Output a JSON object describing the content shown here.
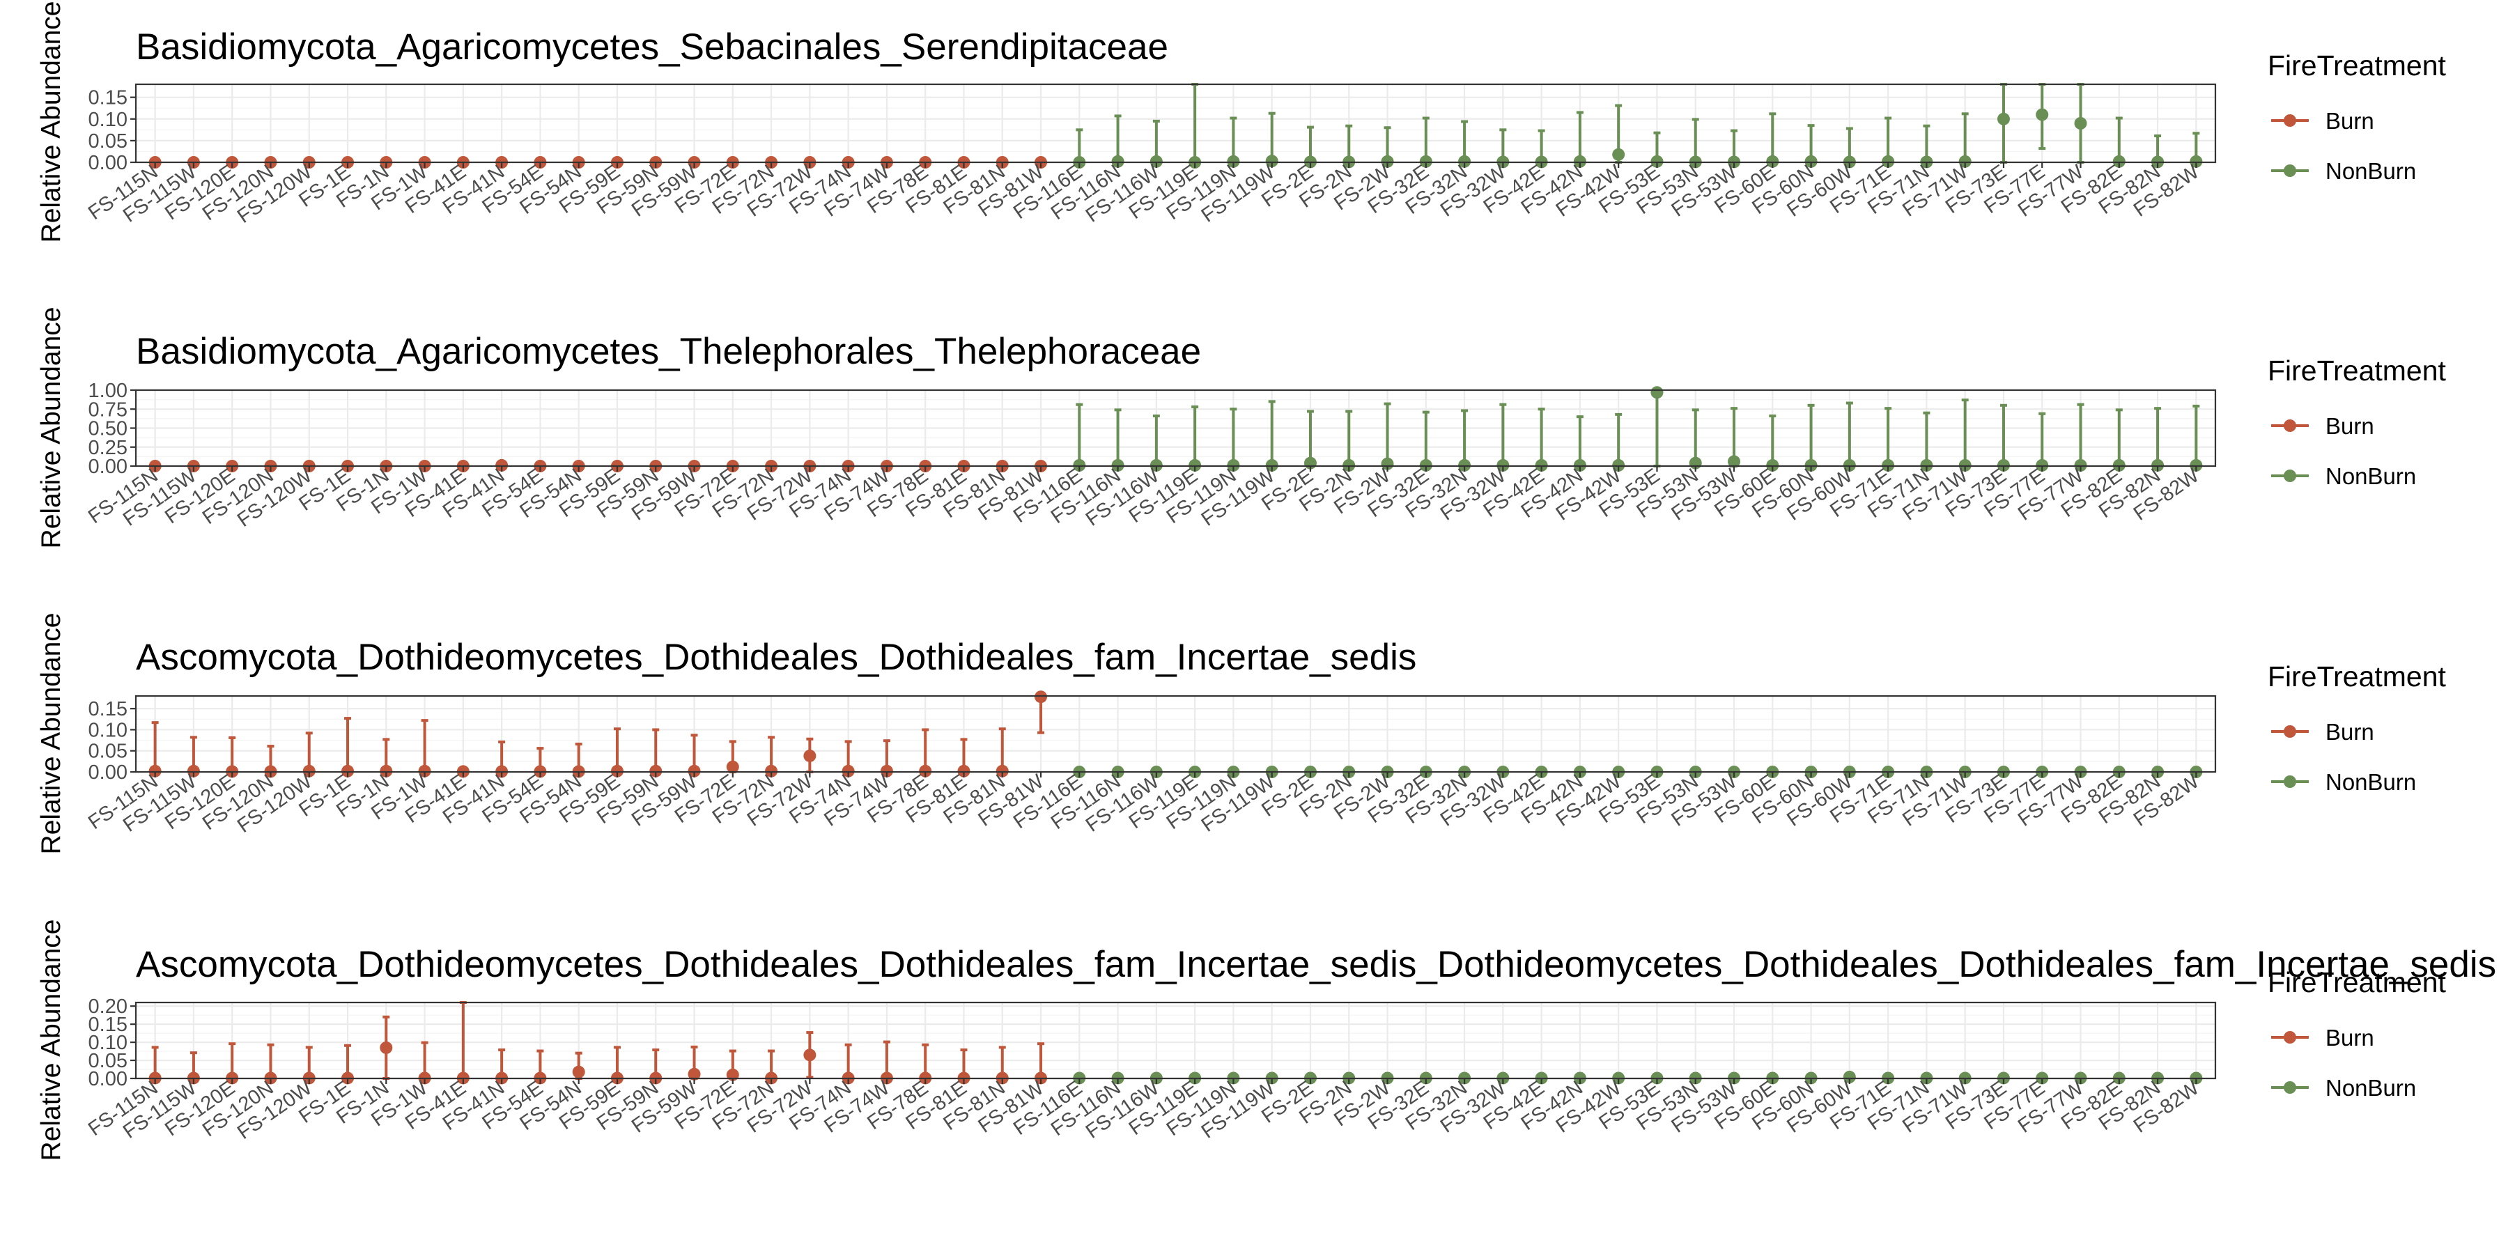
{
  "colors": {
    "burn": "#C0573B",
    "nonburn": "#6A8F55"
  },
  "chart_data": {
    "type": "scatter",
    "categories": [
      "FS-115N",
      "FS-115W",
      "FS-120E",
      "FS-120N",
      "FS-120W",
      "FS-1E",
      "FS-1N",
      "FS-1W",
      "FS-41E",
      "FS-41N",
      "FS-54E",
      "FS-54N",
      "FS-59E",
      "FS-59N",
      "FS-59W",
      "FS-72E",
      "FS-72N",
      "FS-72W",
      "FS-74N",
      "FS-74W",
      "FS-78E",
      "FS-81E",
      "FS-81N",
      "FS-81W",
      "FS-116E",
      "FS-116N",
      "FS-116W",
      "FS-119E",
      "FS-119N",
      "FS-119W",
      "FS-2E",
      "FS-2N",
      "FS-2W",
      "FS-32E",
      "FS-32N",
      "FS-32W",
      "FS-42E",
      "FS-42N",
      "FS-42W",
      "FS-53E",
      "FS-53N",
      "FS-53W",
      "FS-60E",
      "FS-60N",
      "FS-60W",
      "FS-71E",
      "FS-71N",
      "FS-71W",
      "FS-73E",
      "FS-77E",
      "FS-77W",
      "FS-82E",
      "FS-82N",
      "FS-82W"
    ],
    "burn_count": 24,
    "legend": {
      "title": "FireTreatment",
      "entries": [
        "Burn",
        "NonBurn"
      ],
      "placement": "right"
    },
    "panels": [
      {
        "title": "Basidiomycota_Agaricomycetes_Sebacinales_Serendipitaceae",
        "ylabel": "Relative Abundance",
        "ylim": [
          0,
          0.18
        ],
        "yticks": [
          "0.00",
          "0.05",
          "0.10",
          "0.15"
        ],
        "values": [
          0,
          0,
          0,
          0,
          0,
          0,
          0,
          0,
          0,
          0,
          0,
          0,
          0,
          0,
          0,
          0,
          0,
          0,
          0,
          0,
          0,
          0,
          0,
          0,
          0,
          0.002,
          0.002,
          0,
          0.002,
          0.003,
          0.001,
          0.001,
          0.002,
          0.002,
          0.002,
          0.001,
          0.001,
          0.002,
          0.018,
          0.002,
          0.001,
          0.001,
          0.002,
          0.002,
          0.001,
          0.002,
          0.001,
          0.002,
          0.1,
          0.11,
          0.09,
          0.002,
          0.001,
          0.002
        ],
        "errors": [
          0,
          0,
          0,
          0,
          0,
          0,
          0,
          0,
          0,
          0,
          0,
          0,
          0,
          0,
          0,
          0,
          0,
          0,
          0,
          0,
          0,
          0,
          0,
          0,
          0.075,
          0.105,
          0.093,
          0.18,
          0.1,
          0.11,
          0.08,
          0.083,
          0.078,
          0.1,
          0.092,
          0.074,
          0.072,
          0.113,
          0.113,
          0.066,
          0.098,
          0.072,
          0.11,
          0.083,
          0.077,
          0.1,
          0.083,
          0.11,
          0.137,
          0.078,
          0.1,
          0.1,
          0.06,
          0.065
        ]
      },
      {
        "title": "Basidiomycota_Agaricomycetes_Thelephorales_Thelephoraceae",
        "ylabel": "Relative Abundance",
        "ylim": [
          0,
          1
        ],
        "yticks": [
          "0.00",
          "0.25",
          "0.50",
          "0.75",
          "1.00"
        ],
        "values": [
          0,
          0,
          0,
          0,
          0,
          0,
          0,
          0,
          0,
          0.01,
          0,
          0,
          0,
          0,
          0,
          0,
          0,
          0,
          0,
          0,
          0,
          0,
          0,
          0,
          0.01,
          0.01,
          0.01,
          0.01,
          0.01,
          0.01,
          0.04,
          0.01,
          0.03,
          0.01,
          0.01,
          0.01,
          0.01,
          0.01,
          0.01,
          0.97,
          0.04,
          0.06,
          0.01,
          0.01,
          0.01,
          0.01,
          0.01,
          0.01,
          0.01,
          0.01,
          0.01,
          0.01,
          0.01,
          0.01
        ],
        "errors": [
          0,
          0,
          0,
          0,
          0,
          0,
          0,
          0,
          0,
          0,
          0,
          0,
          0,
          0,
          0,
          0,
          0,
          0,
          0,
          0,
          0,
          0,
          0,
          0,
          0.8,
          0.73,
          0.65,
          0.77,
          0.74,
          0.84,
          0.68,
          0.71,
          0.79,
          0.7,
          0.72,
          0.8,
          0.74,
          0.64,
          0.67,
          0.97,
          0.7,
          0.7,
          0.65,
          0.79,
          0.82,
          0.75,
          0.69,
          0.86,
          0.79,
          0.68,
          0.8,
          0.73,
          0.75,
          0.78
        ]
      },
      {
        "title": "Ascomycota_Dothideomycetes_Dothideales_Dothideales_fam_Incertae_sedis",
        "ylabel": "Relative Abundance",
        "ylim": [
          0,
          0.18
        ],
        "yticks": [
          "0.00",
          "0.05",
          "0.10",
          "0.15"
        ],
        "values": [
          0.002,
          0.002,
          0.001,
          0.001,
          0.002,
          0.002,
          0.002,
          0.002,
          0.001,
          0.001,
          0.001,
          0.001,
          0.002,
          0.002,
          0.002,
          0.012,
          0.002,
          0.038,
          0.002,
          0.002,
          0.002,
          0.002,
          0.002,
          0.178,
          0,
          0,
          0,
          0,
          0,
          0,
          0,
          0,
          0,
          0,
          0,
          0,
          0,
          0,
          0,
          0,
          0,
          0,
          0,
          0,
          0,
          0,
          0,
          0,
          0,
          0,
          0,
          0,
          0,
          0
        ],
        "errors": [
          0.115,
          0.08,
          0.08,
          0.06,
          0.09,
          0.125,
          0.075,
          0.12,
          0.005,
          0.07,
          0.055,
          0.065,
          0.1,
          0.098,
          0.085,
          0.06,
          0.08,
          0.04,
          0.07,
          0.072,
          0.098,
          0.075,
          0.1,
          0.085,
          0,
          0,
          0,
          0,
          0,
          0,
          0,
          0,
          0,
          0,
          0,
          0,
          0,
          0,
          0,
          0,
          0,
          0,
          0,
          0,
          0,
          0,
          0,
          0,
          0,
          0,
          0,
          0,
          0,
          0
        ]
      },
      {
        "title": "Ascomycota_Dothideomycetes_Dothideales_Dothideales_fam_Incertae_sedis_Dothideomycetes_Dothideales_Dothideales_fam_Incertae_sedis",
        "ylabel": "Relative Abundance",
        "ylim": [
          0,
          0.21
        ],
        "yticks": [
          "0.00",
          "0.05",
          "0.10",
          "0.15",
          "0.20"
        ],
        "values": [
          0.001,
          0.001,
          0.001,
          0.001,
          0.001,
          0.001,
          0.085,
          0.001,
          0.001,
          0.001,
          0.001,
          0.018,
          0.001,
          0.001,
          0.012,
          0.01,
          0.001,
          0.065,
          0.001,
          0.001,
          0.001,
          0.001,
          0.001,
          0.001,
          0.001,
          0.001,
          0.001,
          0.001,
          0.001,
          0.001,
          0.001,
          0.001,
          0.001,
          0.001,
          0.001,
          0.001,
          0.001,
          0.001,
          0.001,
          0.001,
          0.001,
          0.001,
          0.001,
          0.001,
          0.004,
          0.001,
          0.001,
          0.001,
          0.001,
          0.001,
          0.001,
          0.001,
          0.001,
          0.001
        ],
        "errors": [
          0.085,
          0.07,
          0.095,
          0.092,
          0.085,
          0.09,
          0.085,
          0.098,
          0.21,
          0.078,
          0.075,
          0.052,
          0.085,
          0.078,
          0.075,
          0.066,
          0.075,
          0.062,
          0.092,
          0.1,
          0.092,
          0.078,
          0.085,
          0.095,
          0,
          0,
          0,
          0,
          0,
          0,
          0,
          0,
          0,
          0,
          0,
          0,
          0,
          0,
          0,
          0,
          0,
          0,
          0,
          0,
          0,
          0,
          0,
          0,
          0,
          0,
          0,
          0,
          0,
          0
        ]
      }
    ]
  }
}
